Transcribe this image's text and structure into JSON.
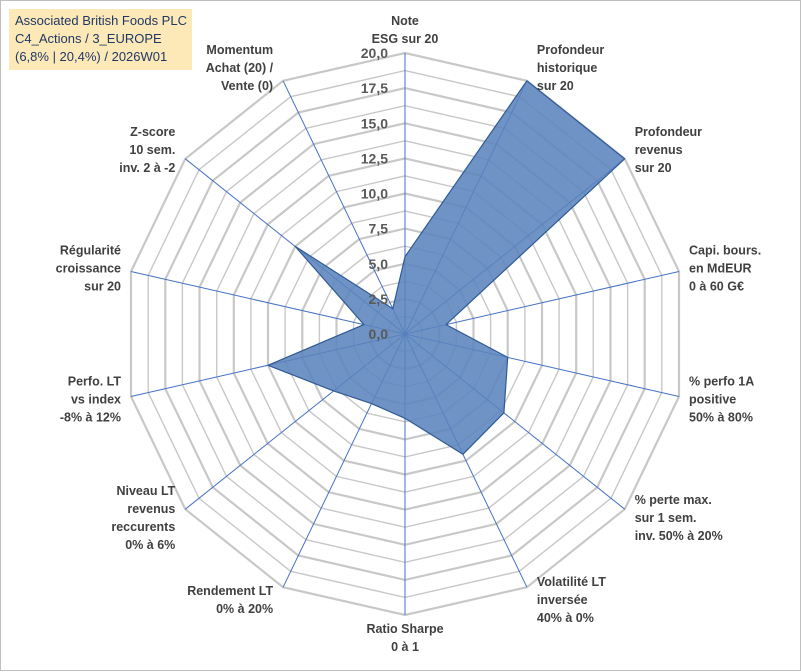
{
  "title_lines": [
    "Associated British Foods PLC",
    "C4_Actions / 3_EUROPE",
    "(6,8% | 20,4%) / 2026W01"
  ],
  "colors": {
    "fill": "#5b84bd",
    "stroke": "#2e5a96",
    "grid": "#c8c8c8",
    "spoke": "#4472c4",
    "title_bg": "#fde9b8",
    "title_text": "#1f3864"
  },
  "chart_data": {
    "type": "radar",
    "rmin": 0,
    "rmax": 20,
    "tick_step": 2.5,
    "tick_labels": [
      "0,0",
      "2,5",
      "5,0",
      "7,5",
      "10,0",
      "12,5",
      "15,0",
      "17,5",
      "20,0"
    ],
    "axes": [
      [
        "Note",
        "ESG sur 20"
      ],
      [
        "Profondeur",
        "historique",
        "sur 20"
      ],
      [
        "Profondeur",
        "revenus",
        "sur 20"
      ],
      [
        "Capi. bours.",
        "en MdEUR",
        "0 à 60 G€"
      ],
      [
        "% perfo 1A",
        "positive",
        "50% à 80%"
      ],
      [
        "% perte max.",
        "sur 1 sem.",
        "inv. 50% à 20%"
      ],
      [
        "Volatilité LT",
        "inversée",
        "40% à 0%"
      ],
      [
        "Ratio Sharpe",
        "0 à 1"
      ],
      [
        "Rendement LT",
        "0% à 20%"
      ],
      [
        "Niveau LT",
        "revenus",
        "reccurents",
        "0% à 6%"
      ],
      [
        "Perfo. LT",
        "vs index",
        "-8% à 12%"
      ],
      [
        "Régularité",
        "croissance",
        "sur 20"
      ],
      [
        "Z-score",
        "10 sem.",
        "inv. 2 à -2"
      ],
      [
        "Momentum",
        "Achat (20) /",
        "Vente (0)"
      ]
    ],
    "series": [
      {
        "values": [
          5.5,
          20,
          20,
          3,
          7.5,
          9,
          9.5,
          6,
          5.5,
          6.5,
          10,
          3,
          10,
          2
        ]
      }
    ]
  }
}
